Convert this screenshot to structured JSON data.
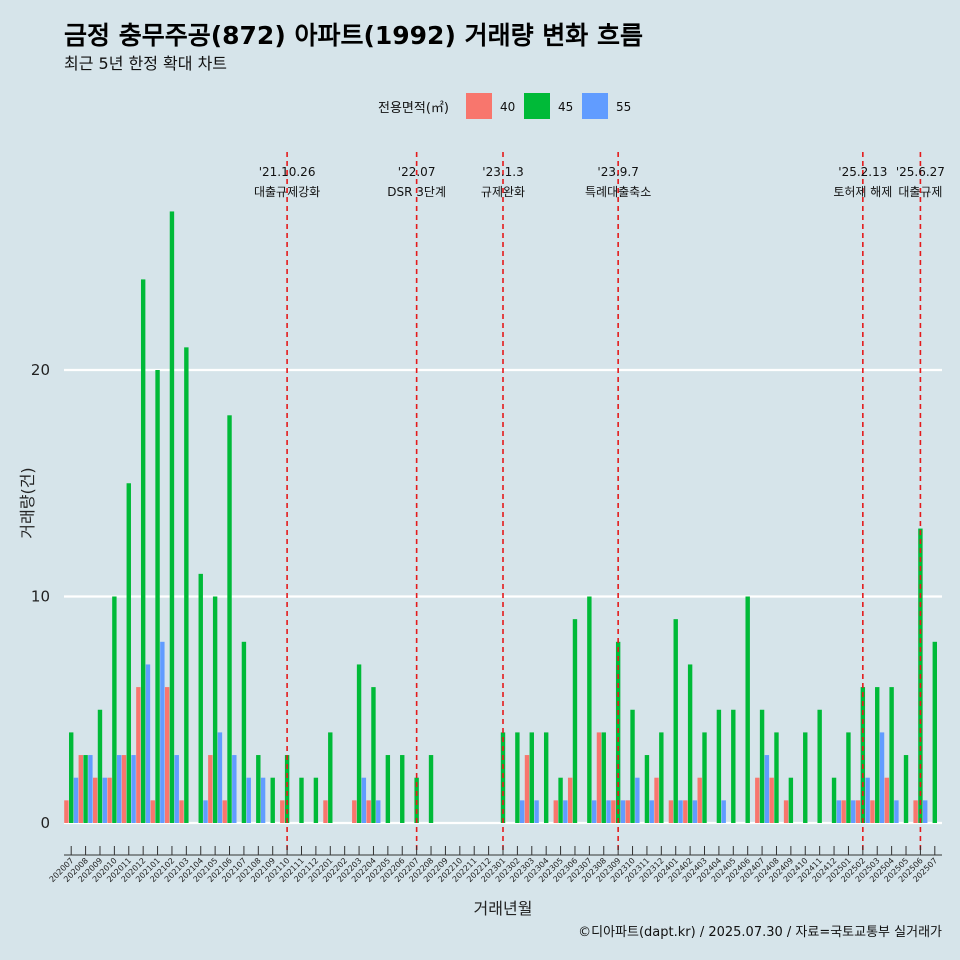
{
  "header": {
    "title": "금정 충무주공(872) 아파트(1992) 거래량 변화 흐름",
    "subtitle": "최근 5년 한정 확대 차트"
  },
  "caption": "©디아파트(dapt.kr) / 2025.07.30 / 자료=국토교통부 실거래가",
  "colors": {
    "40": "#F8766D",
    "45": "#00BA38",
    "55": "#619CFF",
    "background": "#d6e4ea",
    "vline": "#e41a1c"
  },
  "chart_data": {
    "type": "bar",
    "xlabel": "거래년월",
    "ylabel": "거래량(건)",
    "ylim": [
      0,
      28
    ],
    "yticks": [
      0,
      10,
      20
    ],
    "legend": {
      "title": "전용면적(㎡)",
      "position": "top"
    },
    "categories": [
      "202007",
      "202008",
      "202009",
      "202010",
      "202011",
      "202012",
      "202101",
      "202102",
      "202103",
      "202104",
      "202105",
      "202106",
      "202107",
      "202108",
      "202109",
      "202110",
      "202111",
      "202112",
      "202201",
      "202202",
      "202203",
      "202204",
      "202205",
      "202206",
      "202207",
      "202208",
      "202209",
      "202210",
      "202211",
      "202212",
      "202301",
      "202302",
      "202303",
      "202304",
      "202305",
      "202306",
      "202307",
      "202308",
      "202309",
      "202310",
      "202311",
      "202312",
      "202401",
      "202402",
      "202403",
      "202404",
      "202405",
      "202406",
      "202407",
      "202408",
      "202409",
      "202410",
      "202411",
      "202412",
      "202501",
      "202502",
      "202503",
      "202504",
      "202505",
      "202506",
      "202507"
    ],
    "series": [
      {
        "name": "40",
        "values": [
          1,
          3,
          2,
          2,
          3,
          6,
          1,
          6,
          1,
          0,
          3,
          1,
          0,
          0,
          0,
          1,
          0,
          0,
          1,
          0,
          1,
          1,
          0,
          0,
          0,
          0,
          0,
          0,
          0,
          0,
          0,
          0,
          3,
          0,
          1,
          2,
          0,
          4,
          1,
          1,
          0,
          2,
          1,
          1,
          2,
          0,
          0,
          0,
          2,
          2,
          1,
          0,
          0,
          0,
          1,
          1,
          1,
          2,
          0,
          1,
          0
        ]
      },
      {
        "name": "45",
        "values": [
          4,
          3,
          5,
          10,
          15,
          24,
          20,
          27,
          21,
          11,
          10,
          18,
          8,
          3,
          2,
          3,
          2,
          2,
          4,
          0,
          7,
          6,
          3,
          3,
          2,
          3,
          0,
          0,
          0,
          0,
          4,
          4,
          4,
          4,
          2,
          9,
          10,
          4,
          8,
          5,
          3,
          4,
          9,
          7,
          4,
          5,
          5,
          10,
          5,
          4,
          2,
          4,
          5,
          2,
          4,
          6,
          6,
          6,
          3,
          13,
          8
        ]
      },
      {
        "name": "55",
        "values": [
          2,
          3,
          2,
          3,
          3,
          7,
          8,
          3,
          0,
          1,
          4,
          3,
          2,
          2,
          0,
          0,
          0,
          0,
          0,
          0,
          2,
          1,
          0,
          0,
          0,
          0,
          0,
          0,
          0,
          0,
          0,
          1,
          1,
          0,
          1,
          0,
          1,
          1,
          1,
          2,
          1,
          0,
          1,
          1,
          0,
          1,
          0,
          0,
          3,
          0,
          0,
          0,
          0,
          1,
          1,
          2,
          4,
          1,
          0,
          1,
          0
        ]
      }
    ],
    "annotations": [
      {
        "x": "202110",
        "date": "'21.10.26",
        "label": "대출규제강화"
      },
      {
        "x": "202207",
        "date": "'22.07",
        "label": "DSR 3단계"
      },
      {
        "x": "202301",
        "date": "'23.1.3",
        "label": "규제완화"
      },
      {
        "x": "202309",
        "date": "'23.9.7",
        "label": "특례대출축소"
      },
      {
        "x": "202502",
        "date": "'25.2.13",
        "label": "토허제 해제"
      },
      {
        "x": "202506",
        "date": "'25.6.27",
        "label": "대출규제"
      }
    ]
  }
}
